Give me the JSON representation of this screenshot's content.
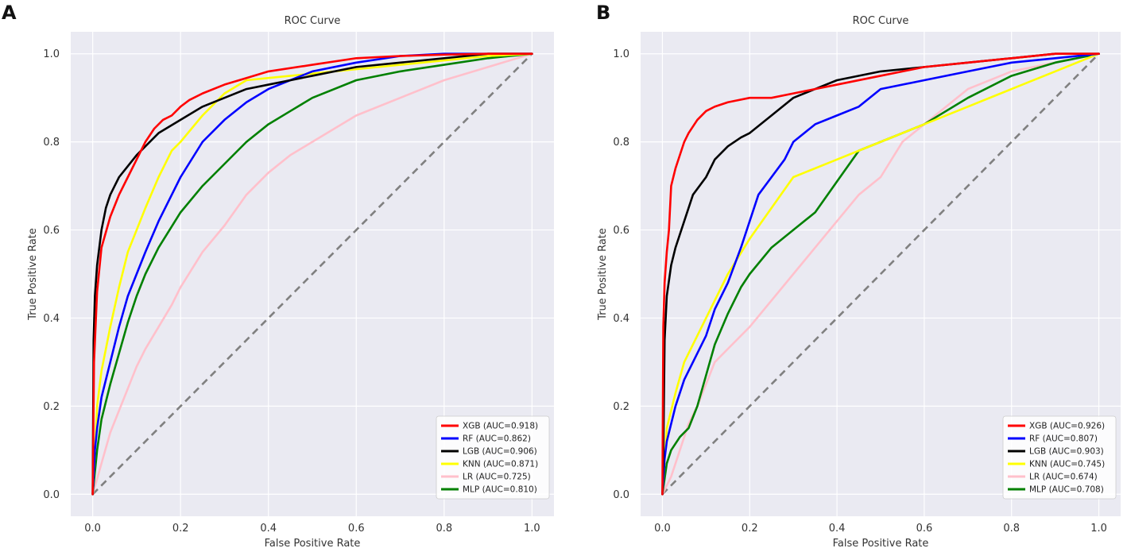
{
  "panel_labels": [
    "A",
    "B"
  ],
  "chart_data": [
    {
      "type": "line",
      "panel": "A",
      "title": "ROC Curve",
      "xlabel": "False Positive Rate",
      "ylabel": "True Positive Rate",
      "xlim": [
        -0.05,
        1.05
      ],
      "ylim": [
        -0.05,
        1.05
      ],
      "xticks": [
        0.0,
        0.2,
        0.4,
        0.6,
        0.8,
        1.0
      ],
      "yticks": [
        0.0,
        0.2,
        0.4,
        0.6,
        0.8,
        1.0
      ],
      "xtick_labels": [
        "0.0",
        "0.2",
        "0.4",
        "0.6",
        "0.8",
        "1.0"
      ],
      "ytick_labels": [
        "0.0",
        "0.2",
        "0.4",
        "0.6",
        "0.8",
        "1.0"
      ],
      "grid": true,
      "background": "#eaeaf2",
      "legend_position": "lower-right",
      "diagonal": {
        "x": [
          0,
          1
        ],
        "y": [
          0,
          1
        ],
        "color": "#808080",
        "style": "dashed"
      },
      "series": [
        {
          "name": "XGB",
          "label": "XGB (AUC=0.918)",
          "color": "#ff0000",
          "x": [
            0,
            0.003,
            0.01,
            0.02,
            0.04,
            0.06,
            0.08,
            0.1,
            0.12,
            0.14,
            0.16,
            0.18,
            0.2,
            0.22,
            0.25,
            0.3,
            0.35,
            0.4,
            0.5,
            0.6,
            0.7,
            0.8,
            0.9,
            1.0
          ],
          "y": [
            0,
            0.3,
            0.46,
            0.56,
            0.63,
            0.68,
            0.72,
            0.76,
            0.8,
            0.83,
            0.85,
            0.86,
            0.88,
            0.895,
            0.91,
            0.93,
            0.945,
            0.96,
            0.975,
            0.99,
            0.995,
            0.998,
            1.0,
            1.0
          ]
        },
        {
          "name": "RF",
          "label": "RF (AUC=0.862)",
          "color": "#0000ff",
          "x": [
            0,
            0.005,
            0.01,
            0.02,
            0.04,
            0.06,
            0.08,
            0.1,
            0.12,
            0.15,
            0.18,
            0.2,
            0.25,
            0.3,
            0.35,
            0.4,
            0.5,
            0.6,
            0.7,
            0.8,
            0.9,
            1.0
          ],
          "y": [
            0,
            0.1,
            0.15,
            0.22,
            0.3,
            0.38,
            0.45,
            0.5,
            0.55,
            0.62,
            0.68,
            0.72,
            0.8,
            0.85,
            0.89,
            0.92,
            0.96,
            0.98,
            0.995,
            1.0,
            1.0,
            1.0
          ]
        },
        {
          "name": "LGB",
          "label": "LGB (AUC=0.906)",
          "color": "#000000",
          "x": [
            0,
            0.002,
            0.005,
            0.01,
            0.02,
            0.03,
            0.04,
            0.05,
            0.06,
            0.08,
            0.1,
            0.12,
            0.15,
            0.2,
            0.25,
            0.3,
            0.35,
            0.4,
            0.5,
            0.6,
            0.7,
            0.8,
            0.9,
            1.0
          ],
          "y": [
            0,
            0.35,
            0.45,
            0.52,
            0.6,
            0.65,
            0.68,
            0.7,
            0.72,
            0.745,
            0.77,
            0.79,
            0.82,
            0.85,
            0.88,
            0.9,
            0.92,
            0.93,
            0.95,
            0.97,
            0.98,
            0.99,
            1.0,
            1.0
          ]
        },
        {
          "name": "KNN",
          "label": "KNN (AUC=0.871)",
          "color": "#ffff00",
          "x": [
            0,
            0.01,
            0.02,
            0.04,
            0.06,
            0.08,
            0.1,
            0.12,
            0.15,
            0.18,
            0.2,
            0.25,
            0.3,
            0.35,
            0.4,
            0.5,
            0.6,
            0.7,
            0.8,
            0.9,
            1.0
          ],
          "y": [
            0,
            0.2,
            0.28,
            0.38,
            0.47,
            0.55,
            0.6,
            0.65,
            0.72,
            0.78,
            0.8,
            0.86,
            0.91,
            0.94,
            0.945,
            0.955,
            0.965,
            0.975,
            0.985,
            0.995,
            1.0
          ]
        },
        {
          "name": "LR",
          "label": "LR (AUC=0.725)",
          "color": "#ffc0cb",
          "x": [
            0,
            0.02,
            0.04,
            0.06,
            0.08,
            0.1,
            0.12,
            0.15,
            0.18,
            0.2,
            0.25,
            0.3,
            0.35,
            0.4,
            0.45,
            0.5,
            0.55,
            0.6,
            0.7,
            0.8,
            0.9,
            1.0
          ],
          "y": [
            0,
            0.07,
            0.14,
            0.19,
            0.24,
            0.29,
            0.33,
            0.38,
            0.43,
            0.47,
            0.55,
            0.61,
            0.68,
            0.73,
            0.77,
            0.8,
            0.83,
            0.86,
            0.9,
            0.94,
            0.97,
            1.0
          ]
        },
        {
          "name": "MLP",
          "label": "MLP (AUC=0.810)",
          "color": "#008000",
          "x": [
            0,
            0.01,
            0.02,
            0.04,
            0.06,
            0.08,
            0.1,
            0.12,
            0.15,
            0.2,
            0.25,
            0.3,
            0.35,
            0.4,
            0.45,
            0.5,
            0.6,
            0.7,
            0.8,
            0.9,
            1.0
          ],
          "y": [
            0,
            0.1,
            0.17,
            0.25,
            0.32,
            0.39,
            0.45,
            0.5,
            0.56,
            0.64,
            0.7,
            0.75,
            0.8,
            0.84,
            0.87,
            0.9,
            0.94,
            0.96,
            0.975,
            0.99,
            1.0
          ]
        }
      ]
    },
    {
      "type": "line",
      "panel": "B",
      "title": "ROC Curve",
      "xlabel": "False Positive Rate",
      "ylabel": "True Positive Rate",
      "xlim": [
        -0.05,
        1.05
      ],
      "ylim": [
        -0.05,
        1.05
      ],
      "xticks": [
        0.0,
        0.2,
        0.4,
        0.6,
        0.8,
        1.0
      ],
      "yticks": [
        0.0,
        0.2,
        0.4,
        0.6,
        0.8,
        1.0
      ],
      "xtick_labels": [
        "0.0",
        "0.2",
        "0.4",
        "0.6",
        "0.8",
        "1.0"
      ],
      "ytick_labels": [
        "0.0",
        "0.2",
        "0.4",
        "0.6",
        "0.8",
        "1.0"
      ],
      "grid": true,
      "background": "#eaeaf2",
      "legend_position": "lower-right",
      "diagonal": {
        "x": [
          0,
          1
        ],
        "y": [
          0,
          1
        ],
        "color": "#808080",
        "style": "dashed"
      },
      "series": [
        {
          "name": "XGB",
          "label": "XGB (AUC=0.926)",
          "color": "#ff0000",
          "x": [
            0,
            0.002,
            0.005,
            0.01,
            0.015,
            0.02,
            0.03,
            0.04,
            0.05,
            0.06,
            0.08,
            0.1,
            0.12,
            0.15,
            0.2,
            0.25,
            0.3,
            0.4,
            0.5,
            0.6,
            0.7,
            0.8,
            0.9,
            1.0
          ],
          "y": [
            0,
            0.38,
            0.48,
            0.55,
            0.6,
            0.7,
            0.74,
            0.77,
            0.8,
            0.82,
            0.85,
            0.87,
            0.88,
            0.89,
            0.9,
            0.9,
            0.91,
            0.93,
            0.95,
            0.97,
            0.98,
            0.99,
            1.0,
            1.0
          ]
        },
        {
          "name": "RF",
          "label": "RF (AUC=0.807)",
          "color": "#0000ff",
          "x": [
            0,
            0.005,
            0.01,
            0.02,
            0.03,
            0.05,
            0.07,
            0.1,
            0.12,
            0.15,
            0.18,
            0.2,
            0.22,
            0.25,
            0.28,
            0.3,
            0.35,
            0.4,
            0.45,
            0.5,
            0.6,
            0.7,
            0.8,
            0.9,
            1.0
          ],
          "y": [
            0,
            0.08,
            0.12,
            0.16,
            0.2,
            0.26,
            0.3,
            0.36,
            0.42,
            0.48,
            0.56,
            0.62,
            0.68,
            0.72,
            0.76,
            0.8,
            0.84,
            0.86,
            0.88,
            0.92,
            0.94,
            0.96,
            0.98,
            0.99,
            1.0
          ]
        },
        {
          "name": "LGB",
          "label": "LGB (AUC=0.903)",
          "color": "#000000",
          "x": [
            0,
            0.002,
            0.005,
            0.01,
            0.02,
            0.03,
            0.05,
            0.07,
            0.1,
            0.12,
            0.15,
            0.18,
            0.2,
            0.25,
            0.3,
            0.35,
            0.4,
            0.5,
            0.6,
            0.7,
            0.8,
            0.9,
            1.0
          ],
          "y": [
            0,
            0.08,
            0.35,
            0.45,
            0.52,
            0.56,
            0.62,
            0.68,
            0.72,
            0.76,
            0.79,
            0.81,
            0.82,
            0.86,
            0.9,
            0.92,
            0.94,
            0.96,
            0.97,
            0.98,
            0.99,
            1.0,
            1.0
          ]
        },
        {
          "name": "KNN",
          "label": "KNN (AUC=0.745)",
          "color": "#ffff00",
          "x": [
            0,
            0.01,
            0.03,
            0.05,
            0.1,
            0.15,
            0.2,
            0.3,
            0.4,
            0.5,
            0.6,
            0.7,
            0.8,
            0.9,
            1.0
          ],
          "y": [
            0,
            0.15,
            0.23,
            0.3,
            0.4,
            0.5,
            0.58,
            0.72,
            0.76,
            0.8,
            0.84,
            0.88,
            0.92,
            0.96,
            1.0
          ]
        },
        {
          "name": "LR",
          "label": "LR (AUC=0.674)",
          "color": "#ffc0cb",
          "x": [
            0,
            0.02,
            0.04,
            0.06,
            0.08,
            0.1,
            0.12,
            0.15,
            0.2,
            0.25,
            0.3,
            0.35,
            0.4,
            0.45,
            0.5,
            0.55,
            0.6,
            0.65,
            0.7,
            0.8,
            0.9,
            1.0
          ],
          "y": [
            0,
            0.04,
            0.1,
            0.16,
            0.2,
            0.25,
            0.3,
            0.33,
            0.38,
            0.44,
            0.5,
            0.56,
            0.62,
            0.68,
            0.72,
            0.8,
            0.84,
            0.88,
            0.92,
            0.96,
            0.98,
            1.0
          ]
        },
        {
          "name": "MLP",
          "label": "MLP (AUC=0.708)",
          "color": "#008000",
          "x": [
            0,
            0.01,
            0.02,
            0.04,
            0.06,
            0.08,
            0.1,
            0.12,
            0.15,
            0.18,
            0.2,
            0.25,
            0.3,
            0.35,
            0.4,
            0.45,
            0.5,
            0.55,
            0.6,
            0.7,
            0.8,
            0.9,
            1.0
          ],
          "y": [
            0,
            0.07,
            0.1,
            0.13,
            0.15,
            0.2,
            0.27,
            0.34,
            0.41,
            0.47,
            0.5,
            0.56,
            0.6,
            0.64,
            0.71,
            0.78,
            0.8,
            0.82,
            0.84,
            0.9,
            0.95,
            0.98,
            1.0
          ]
        }
      ]
    }
  ]
}
